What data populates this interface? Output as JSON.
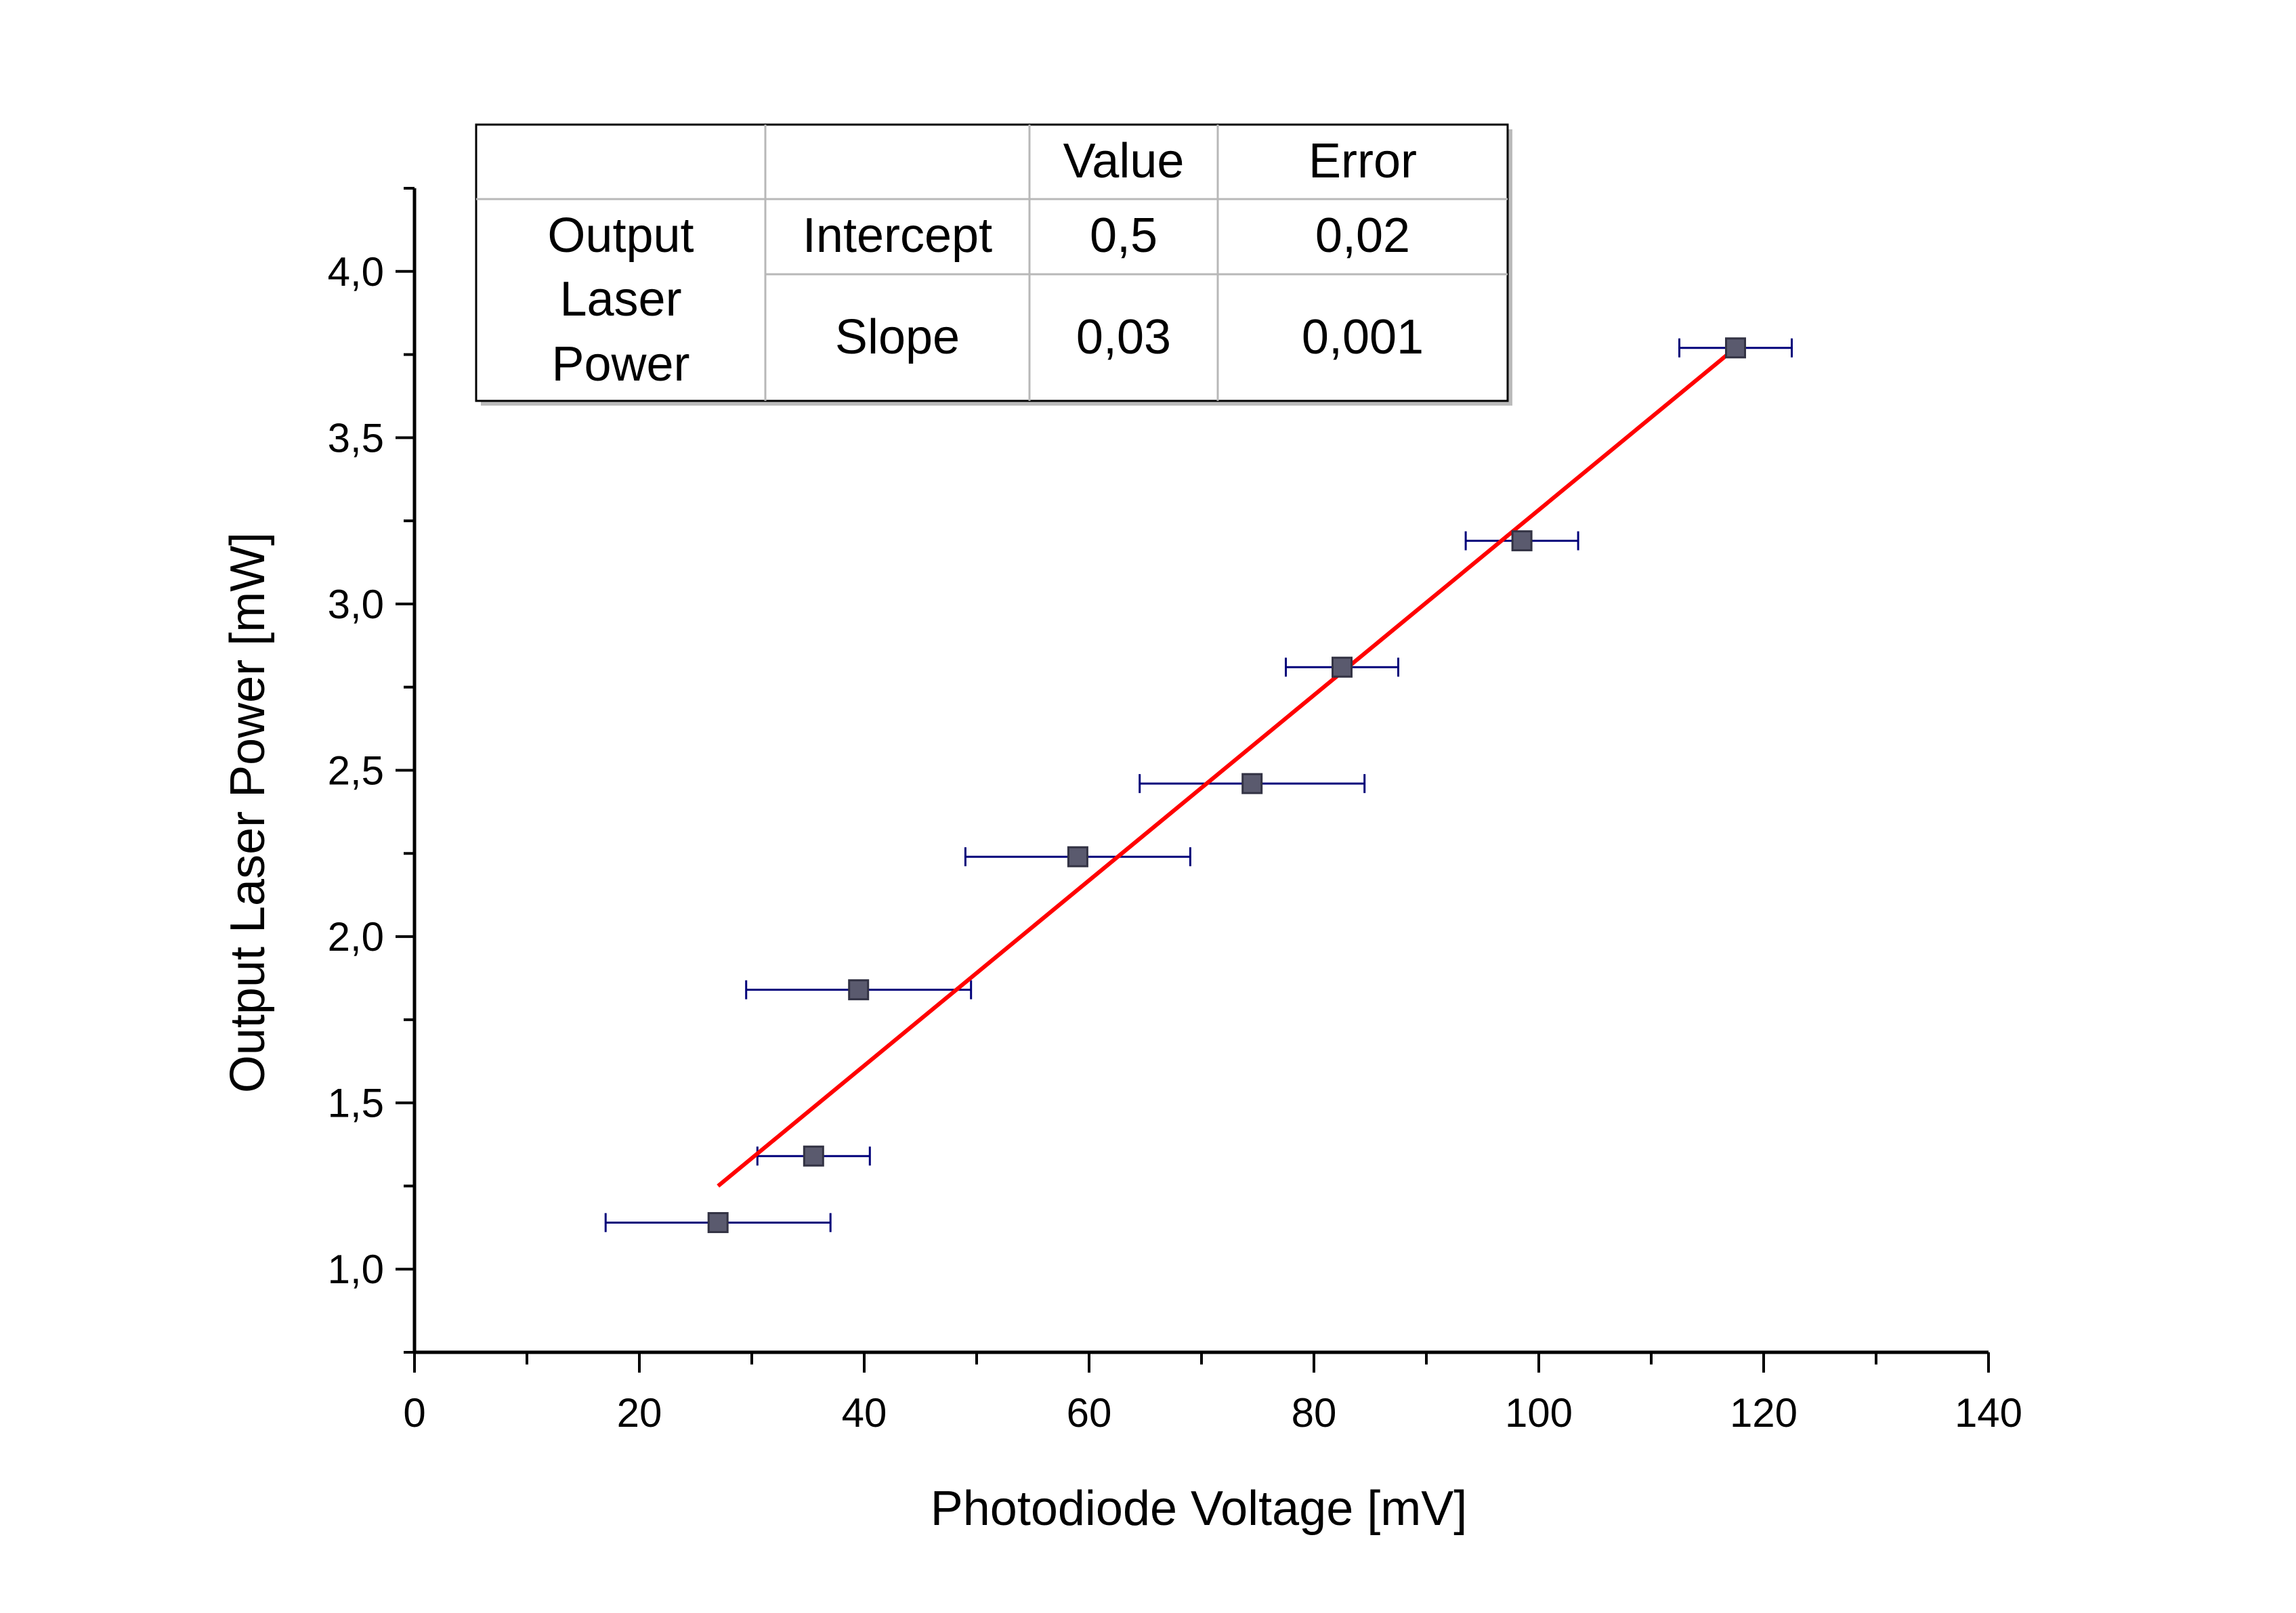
{
  "chart_data": {
    "type": "scatter",
    "xlabel": "Photodiode Voltage [mV]",
    "ylabel": "Output Laser Power [mW]",
    "xlim": [
      0,
      140
    ],
    "ylim": [
      0.75,
      4.25
    ],
    "x_ticks": [
      0,
      20,
      40,
      60,
      80,
      100,
      120,
      140
    ],
    "x_tick_labels": [
      "0",
      "20",
      "40",
      "60",
      "80",
      "100",
      "120",
      "140"
    ],
    "y_ticks": [
      1.0,
      1.5,
      2.0,
      2.5,
      3.0,
      3.5,
      4.0
    ],
    "y_tick_labels": [
      "1,0",
      "1,5",
      "2,0",
      "2,5",
      "3,0",
      "3,5",
      "4,0"
    ],
    "grid": false,
    "points": [
      {
        "x": 27,
        "y": 1.14,
        "x_err": 10
      },
      {
        "x": 35.5,
        "y": 1.34,
        "x_err": 5
      },
      {
        "x": 39.5,
        "y": 1.84,
        "x_err": 10
      },
      {
        "x": 59,
        "y": 2.24,
        "x_err": 10
      },
      {
        "x": 74.5,
        "y": 2.46,
        "x_err": 10
      },
      {
        "x": 82.5,
        "y": 2.81,
        "x_err": 5
      },
      {
        "x": 98.5,
        "y": 3.19,
        "x_err": 5
      },
      {
        "x": 117.5,
        "y": 3.77,
        "x_err": 5
      }
    ],
    "fit_line": {
      "x_start": 27,
      "y_start": 1.25,
      "x_end": 117.5,
      "y_end": 3.77
    },
    "colors": {
      "marker": "#5a5a6e",
      "error_bars": "#00007a",
      "fit_line": "#ff0000",
      "axes": "#000000"
    },
    "fit_table": {
      "headers": [
        "",
        "",
        "Value",
        "Error"
      ],
      "row_label": [
        "Output",
        "Laser",
        "Power"
      ],
      "rows": [
        {
          "name": "Intercept",
          "value": "0,5",
          "error": "0,02"
        },
        {
          "name": "Slope",
          "value": "0,03",
          "error": "0,001"
        }
      ]
    }
  }
}
